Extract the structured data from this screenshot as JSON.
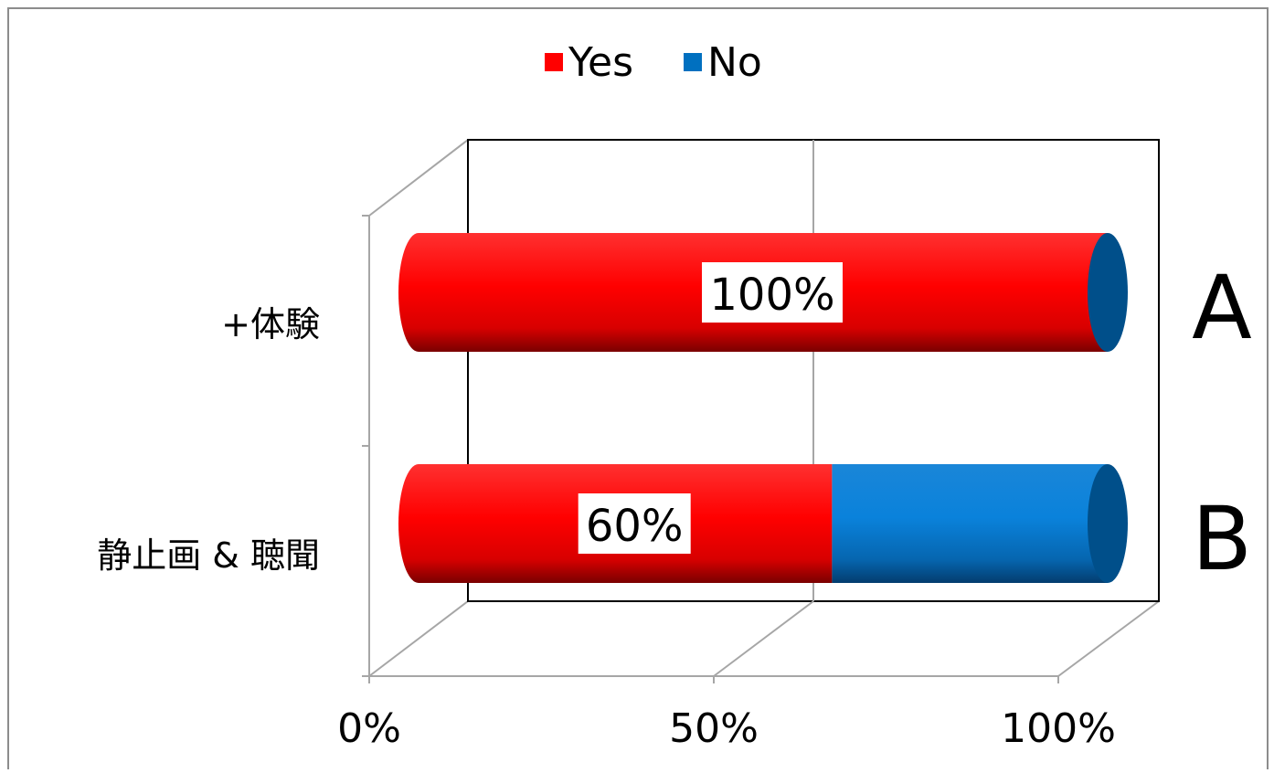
{
  "chart_data": {
    "type": "bar",
    "orientation": "horizontal",
    "stacked": "percent",
    "style": "3d-cylinder",
    "categories": [
      "静止画 & 聴聞",
      "+体験"
    ],
    "side_labels": [
      "B",
      "A"
    ],
    "series": [
      {
        "name": "Yes",
        "values": [
          60,
          100
        ],
        "color": "#ff0000"
      },
      {
        "name": "No",
        "values": [
          40,
          0
        ],
        "color": "#0070c0"
      }
    ],
    "data_labels": [
      "60%",
      "100%"
    ],
    "x_ticks": [
      "0%",
      "50%",
      "100%"
    ],
    "xlim": [
      0,
      100
    ],
    "legend_position": "top",
    "grid": true
  }
}
